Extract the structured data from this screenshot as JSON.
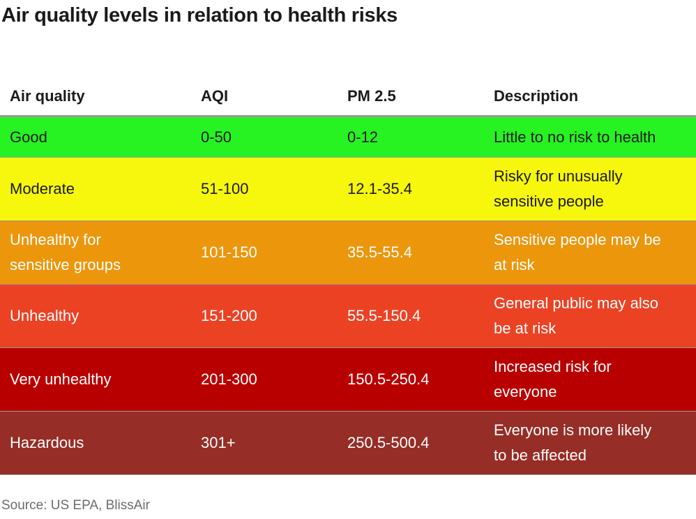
{
  "title": "Air quality levels in relation to health risks",
  "source": "Source: US EPA, BlissAir",
  "chart_data": {
    "type": "table",
    "columns": [
      "Air quality",
      "AQI",
      "PM 2.5",
      "Description"
    ],
    "rows": [
      {
        "quality": "Good",
        "aqi": "0-50",
        "pm25": "0-12",
        "desc": [
          "Little to no risk to health"
        ],
        "color": "#27f222",
        "text_color": "#1a1a1a"
      },
      {
        "quality": "Moderate",
        "aqi": "51-100",
        "pm25": "12.1-35.4",
        "desc": [
          "Risky for unusually",
          "sensitive people"
        ],
        "color": "#f7f70e",
        "text_color": "#1a1a1a"
      },
      {
        "quality": [
          "Unhealthy for",
          "sensitive groups"
        ],
        "aqi": "101-150",
        "pm25": "35.5-55.4",
        "desc": [
          "Sensitive people may be",
          "at risk"
        ],
        "color": "#ec960c",
        "text_color": "#ffffff"
      },
      {
        "quality": "Unhealthy",
        "aqi": "151-200",
        "pm25": "55.5-150.4",
        "desc": [
          "General public may also",
          "be at risk"
        ],
        "color": "#ec4224",
        "text_color": "#ffffff"
      },
      {
        "quality": "Very unhealthy",
        "aqi": "201-300",
        "pm25": "150.5-250.4",
        "desc": [
          "Increased risk for",
          "everyone"
        ],
        "color": "#b90000",
        "text_color": "#ffffff"
      },
      {
        "quality": "Hazardous",
        "aqi": "301+",
        "pm25": "250.5-500.4",
        "desc": [
          "Everyone is more likely",
          "to be affected"
        ],
        "color": "#962d26",
        "text_color": "#ffffff"
      }
    ]
  }
}
